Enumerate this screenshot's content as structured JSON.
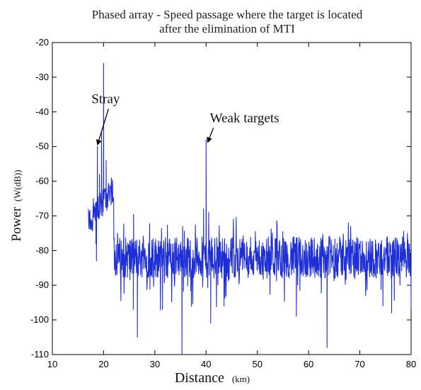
{
  "chart_data": {
    "type": "line",
    "title_line1": "Phased array - Speed passage where the target is located",
    "title_line2": "after the elimination of MTI",
    "xlabel_main": "Distance",
    "xlabel_unit": "(km)",
    "ylabel_main": "Power",
    "ylabel_unit": "(W(dB))",
    "xlim": [
      10,
      80
    ],
    "ylim": [
      -110,
      -20
    ],
    "xticks": [
      "10",
      "20",
      "30",
      "40",
      "50",
      "60",
      "70",
      "80"
    ],
    "yticks": [
      "-20",
      "-30",
      "-40",
      "-50",
      "-60",
      "-70",
      "-80",
      "-90",
      "-100",
      "-110"
    ],
    "grid": false,
    "line_color": "#1f2fd6",
    "annotations": [
      {
        "text": "Stray",
        "x": 20.4,
        "y": -37.5,
        "target_x": 18.8,
        "target_y": -49.5
      },
      {
        "text": "Weak targets",
        "x": 47.5,
        "y": -43,
        "target_x": 40.3,
        "target_y": -48.8
      }
    ],
    "series": [
      {
        "x_start": 17,
        "x_end": 80,
        "noise_floor": -82,
        "noise_amplitude": 6,
        "peaks": [
          {
            "x": 17.5,
            "y": -71
          },
          {
            "x": 18.0,
            "y": -65
          },
          {
            "x": 18.5,
            "y": -78
          },
          {
            "x": 18.8,
            "y": -50
          },
          {
            "x": 19.2,
            "y": -58
          },
          {
            "x": 19.6,
            "y": -46
          },
          {
            "x": 20.0,
            "y": -26
          },
          {
            "x": 20.5,
            "y": -54
          },
          {
            "x": 21.2,
            "y": -62
          },
          {
            "x": 22.0,
            "y": -77
          },
          {
            "x": 39.5,
            "y": -68
          },
          {
            "x": 40.0,
            "y": -48
          },
          {
            "x": 40.5,
            "y": -69
          },
          {
            "x": 79.3,
            "y": -75
          },
          {
            "x": 80.0,
            "y": -97
          }
        ],
        "dips": [
          {
            "x": 18.6,
            "y": -83
          },
          {
            "x": 25.8,
            "y": -97
          },
          {
            "x": 26.6,
            "y": -105
          },
          {
            "x": 31.5,
            "y": -97
          },
          {
            "x": 35.3,
            "y": -110
          },
          {
            "x": 40.9,
            "y": -101
          },
          {
            "x": 43.5,
            "y": -96
          },
          {
            "x": 57.6,
            "y": -99
          },
          {
            "x": 63.6,
            "y": -108
          },
          {
            "x": 74.5,
            "y": -96
          },
          {
            "x": 76.2,
            "y": -98
          }
        ]
      }
    ]
  }
}
